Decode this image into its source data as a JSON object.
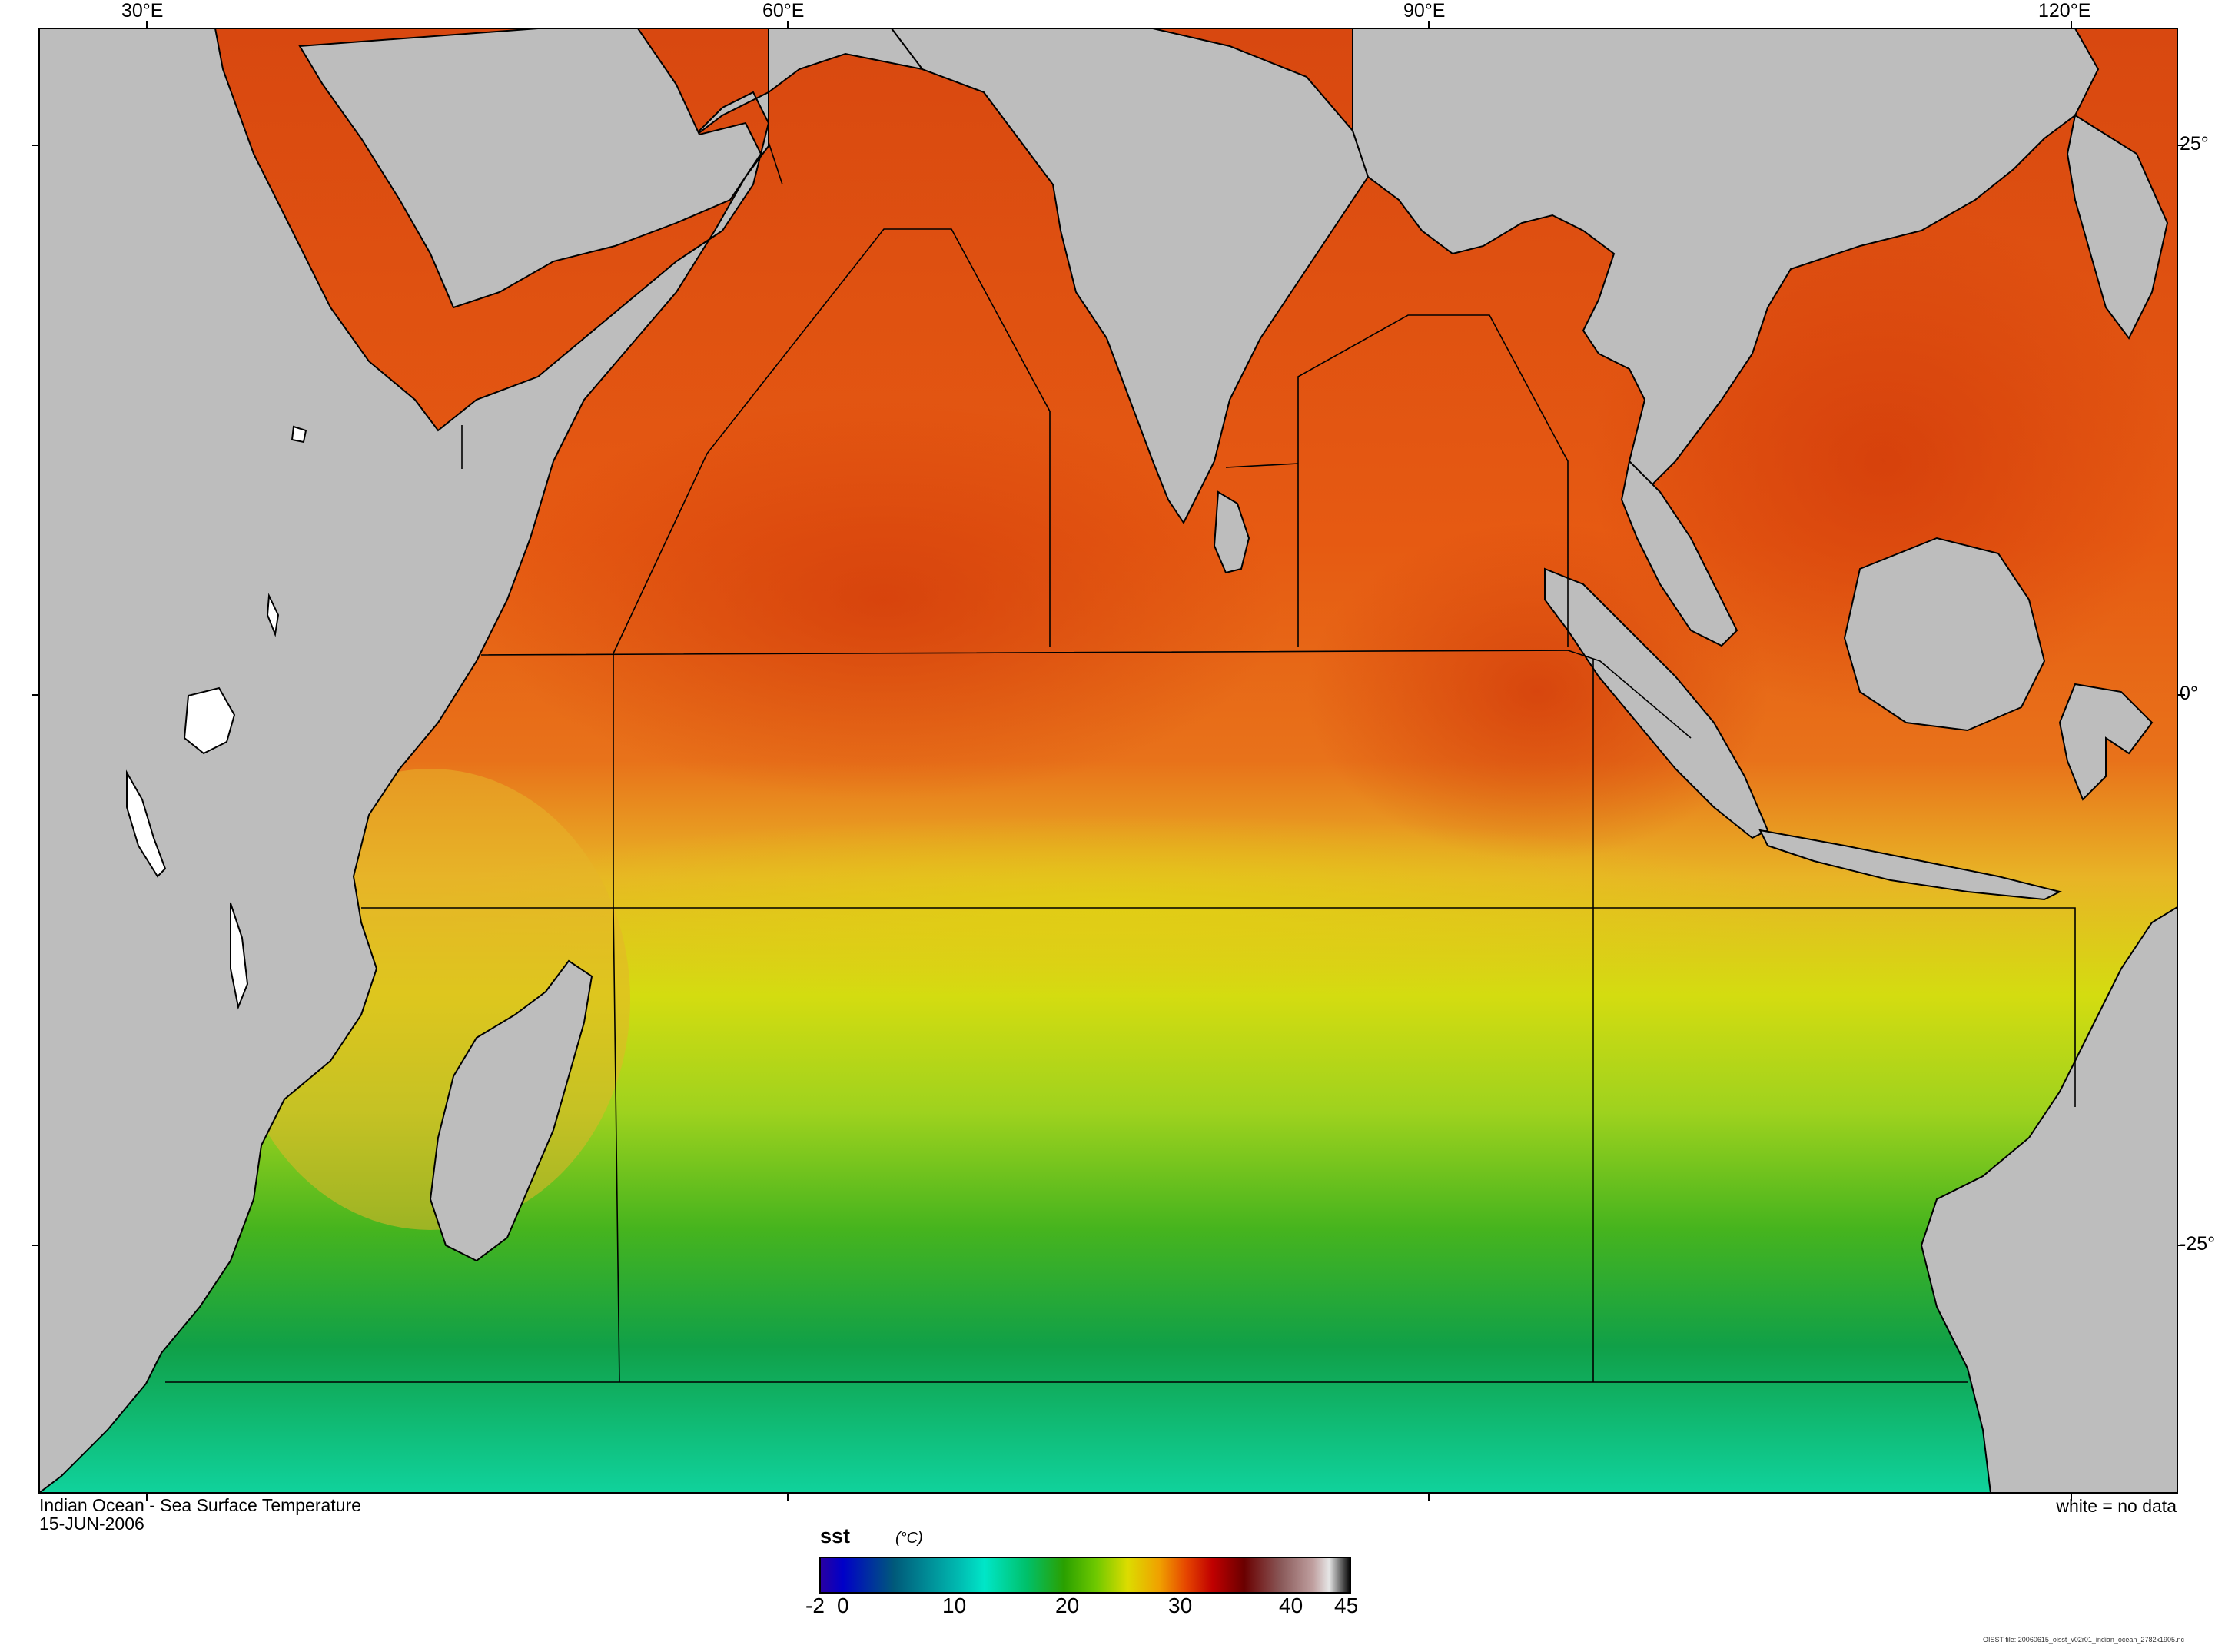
{
  "axes": {
    "lon_labels": [
      "30°E",
      "60°E",
      "90°E",
      "120°E"
    ],
    "lat_labels": [
      "25°",
      "0°",
      "-25°"
    ]
  },
  "caption": {
    "title": "Indian Ocean - Sea Surface Temperature",
    "date": "15-JUN-2006",
    "note": "white = no data",
    "file": "OISST file: 20060615_oisst_v02r01_indian_ocean_2782x1905.nc"
  },
  "colorbar": {
    "variable": "sst",
    "unit": "(°C)",
    "ticks": [
      "-2",
      "0",
      "10",
      "20",
      "30",
      "40",
      "45"
    ],
    "range": [
      -2,
      45
    ],
    "stops": [
      "#2a00a0",
      "#0000c8",
      "#005a7a",
      "#00b9b0",
      "#00e6c8",
      "#00c06a",
      "#2aa000",
      "#6ec800",
      "#dcdc00",
      "#f0a000",
      "#e64600",
      "#c00000",
      "#6a0000",
      "#8a5a5a",
      "#c0a0a0",
      "#e6e6e6",
      "#000000"
    ]
  },
  "colors": {
    "land": "#bdbdbd",
    "no_data": "#ffffff",
    "region_lines": "#000000"
  }
}
